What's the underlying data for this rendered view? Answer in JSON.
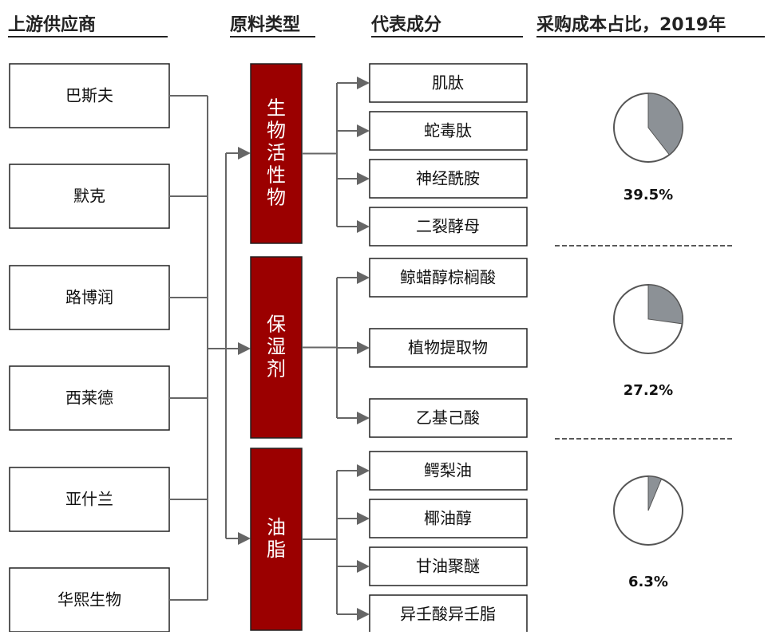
{
  "headers": [
    "上游供应商",
    "原料类型",
    "代表成分",
    "采购成本占比，2019年"
  ],
  "suppliers": [
    "巴斯夫",
    "默克",
    "路博润",
    "西莱德",
    "亚什兰",
    "华熙生物"
  ],
  "categories": [
    {
      "name": "生物活性物",
      "ingredients": [
        "肌肽",
        "蛇毒肽",
        "神经酰胺",
        "二裂酵母"
      ]
    },
    {
      "name": "保湿剂",
      "ingredients": [
        "鲸蜡醇棕榈酸",
        "植物提取物",
        "乙基己酸"
      ]
    },
    {
      "name": "油脂",
      "ingredients": [
        "鳄梨油",
        "椰油醇",
        "甘油聚醚",
        "异壬酸异壬脂"
      ]
    }
  ],
  "pies": {
    "values": [
      39.5,
      27.2,
      6.3
    ],
    "value_labels": [
      "39.5%",
      "27.2%",
      "6.3%"
    ]
  }
}
